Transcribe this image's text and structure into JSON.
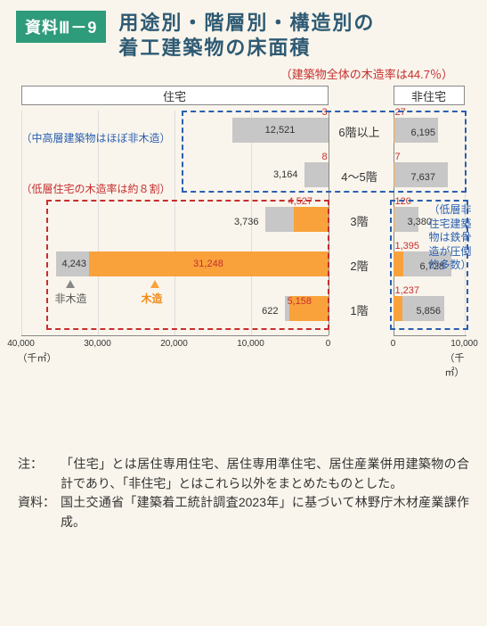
{
  "header": {
    "badge": "資料Ⅲ－9",
    "title": "用途別・階層別・構造別の\n着工建築物の床面積",
    "top_note": "（建築物全体の木造率は44.7％）"
  },
  "colors": {
    "badge_bg": "#2e9b7a",
    "title": "#2e5a73",
    "red": "#c62f2f",
    "blue": "#2a5fb0",
    "gray_bar": "#c7c7c7",
    "orange_bar": "#f9a23c",
    "background": "#f9f5ec"
  },
  "chart": {
    "left_panel_label": "住宅",
    "right_panel_label": "非住宅",
    "row_labels": [
      "6階以上",
      "4～5階",
      "3階",
      "2階",
      "1階"
    ],
    "left_max": 40000,
    "right_max": 10000,
    "left_ticks": [
      "40,000",
      "30,000",
      "20,000",
      "10,000",
      "0"
    ],
    "right_ticks": [
      "0",
      "10,000"
    ],
    "unit_left": "（千㎡）",
    "unit_right": "（千㎡）",
    "left_data": {
      "row0": {
        "gray": 12521,
        "orange": 3,
        "gray_label": "12,521",
        "orange_label": "3"
      },
      "row1": {
        "gray": 3164,
        "orange": 8,
        "gray_label": "3,164",
        "orange_label": "8"
      },
      "row2": {
        "gray": 3736,
        "orange": 4527,
        "gray_label": "3,736",
        "orange_label": "4,527"
      },
      "row3": {
        "gray": 4243,
        "orange": 31248,
        "gray_label": "4,243",
        "orange_label": "31,248"
      },
      "row4": {
        "gray": 622,
        "orange": 5158,
        "gray_label": "622",
        "orange_label": "5,158"
      }
    },
    "right_data": {
      "row0": {
        "gray": 6195,
        "orange": 27,
        "gray_label": "6,195",
        "orange_label": "27"
      },
      "row1": {
        "gray": 7637,
        "orange": 7,
        "gray_label": "7,637",
        "orange_label": "7"
      },
      "row2": {
        "gray": 3380,
        "orange": 120,
        "gray_label": "3,380",
        "orange_label": "120"
      },
      "row3": {
        "gray": 6728,
        "orange": 1395,
        "gray_label": "6,728",
        "orange_label": "1,395"
      },
      "row4": {
        "gray": 5856,
        "orange": 1237,
        "gray_label": "5,856",
        "orange_label": "1,237"
      }
    },
    "legend": {
      "gray": "非木造",
      "orange": "木造"
    },
    "callouts": {
      "blue_top": "（中高層建築物はほぼ非木造）",
      "red_mid": "（低層住宅の木造率は約８割）",
      "blue_right": "（低層非住宅建築物は鉄骨造が圧倒的多数）"
    }
  },
  "footnote": {
    "label1": "注：",
    "text1": "「住宅」とは居住専用住宅、居住専用準住宅、居住産業併用建築物の合計であり、「非住宅」とはこれら以外をまとめたものとした。",
    "label2": "資料：",
    "text2": "国土交通省「建築着工統計調査2023年」に基づいて林野庁木材産業課作成。"
  }
}
